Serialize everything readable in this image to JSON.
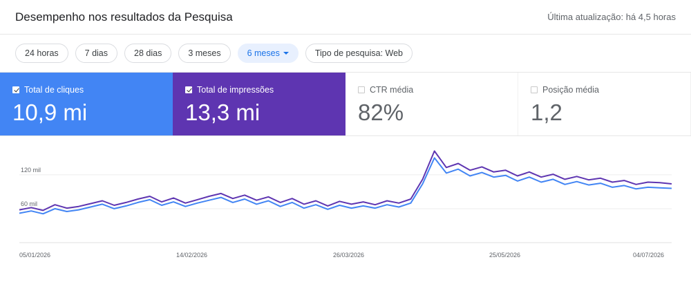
{
  "header": {
    "title": "Desempenho nos resultados da Pesquisa",
    "last_update": "Última atualização: há 4,5 horas"
  },
  "filters": {
    "chips": [
      {
        "label": "24 horas",
        "active": false
      },
      {
        "label": "7 dias",
        "active": false
      },
      {
        "label": "28 dias",
        "active": false
      },
      {
        "label": "3 meses",
        "active": false
      },
      {
        "label": "6 meses",
        "active": true
      },
      {
        "label": "Tipo de pesquisa: Web",
        "active": false
      }
    ]
  },
  "metrics": {
    "clicks": {
      "label": "Total de cliques",
      "value": "10,9 mi",
      "checked": true,
      "color": "#4285f4"
    },
    "impressions": {
      "label": "Total de impressões",
      "value": "13,3 mi",
      "checked": true,
      "color": "#5e35b1"
    },
    "ctr": {
      "label": "CTR média",
      "value": "82%",
      "checked": false
    },
    "position": {
      "label": "Posição média",
      "value": "1,2",
      "checked": false
    }
  },
  "chart_data": {
    "type": "line",
    "x_tick_labels": [
      "05/01/2026",
      "14/02/2026",
      "26/03/2026",
      "25/05/2026",
      "04/07/2026"
    ],
    "y_tick_labels": [
      "120 mil",
      "60 mil"
    ],
    "y_ticks": [
      120,
      60
    ],
    "ylim": [
      0,
      170
    ],
    "grid": true,
    "point_count": 56,
    "series": [
      {
        "name": "Total de impressões",
        "color": "#5e35b1",
        "values": [
          58,
          62,
          57,
          67,
          61,
          64,
          69,
          74,
          66,
          71,
          77,
          82,
          72,
          79,
          70,
          76,
          82,
          87,
          78,
          84,
          75,
          81,
          71,
          78,
          68,
          74,
          65,
          73,
          68,
          72,
          67,
          74,
          70,
          77,
          112,
          162,
          133,
          140,
          128,
          134,
          125,
          128,
          118,
          125,
          116,
          121,
          112,
          117,
          111,
          114,
          107,
          110,
          103,
          107,
          106,
          104
        ]
      },
      {
        "name": "Total de cliques",
        "color": "#4285f4",
        "values": [
          52,
          56,
          51,
          60,
          55,
          58,
          63,
          68,
          60,
          65,
          71,
          76,
          66,
          72,
          64,
          70,
          75,
          80,
          71,
          77,
          68,
          74,
          64,
          71,
          61,
          67,
          59,
          66,
          61,
          65,
          61,
          67,
          63,
          70,
          104,
          150,
          123,
          130,
          118,
          124,
          116,
          119,
          109,
          116,
          107,
          112,
          103,
          108,
          102,
          105,
          98,
          101,
          95,
          98,
          97,
          96
        ]
      }
    ]
  }
}
